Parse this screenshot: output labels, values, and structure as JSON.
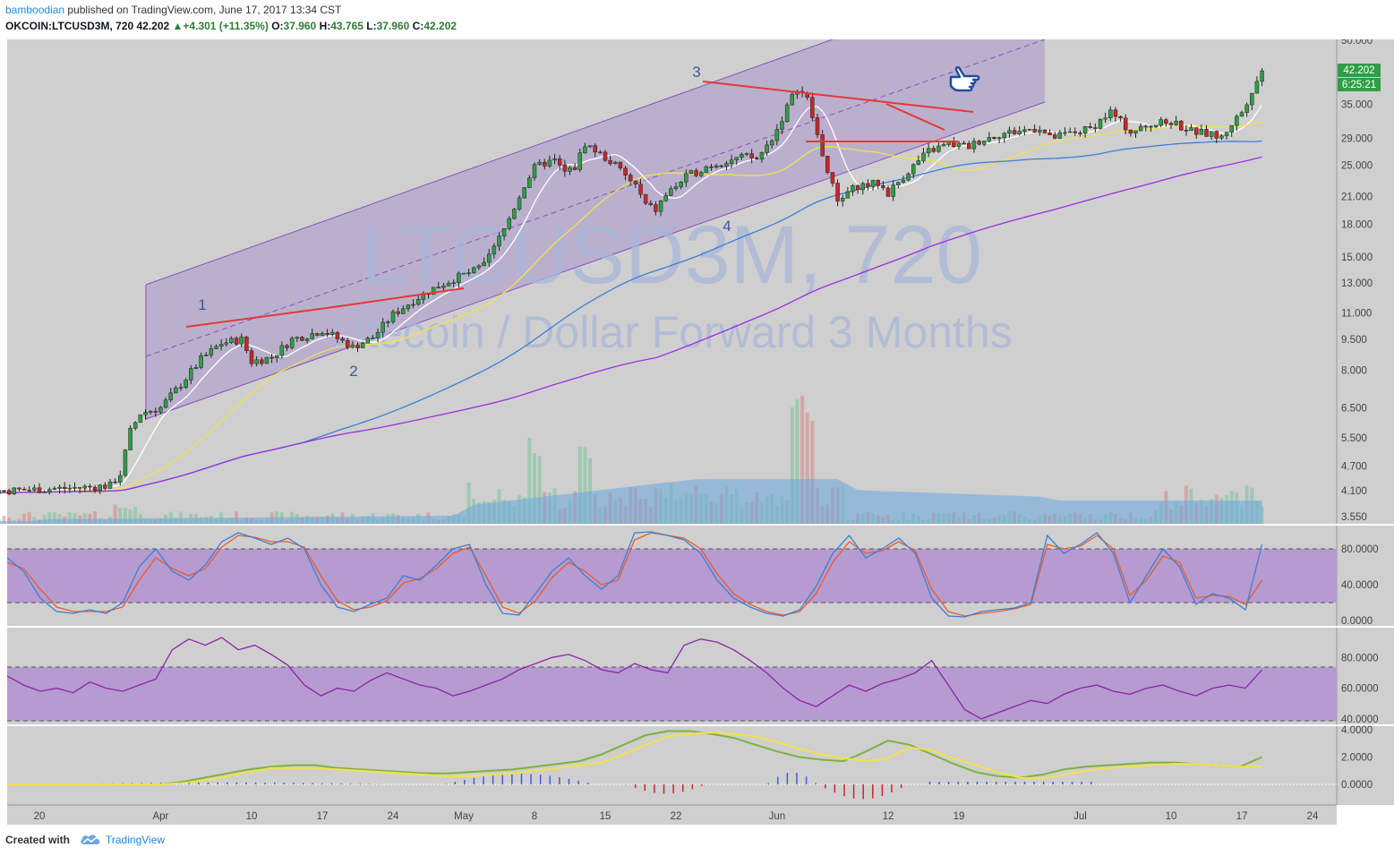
{
  "header": {
    "author": "bamboodian",
    "published_text": "published on TradingView.com, June 17, 2017 13:34 CST",
    "symbol_line": "OKCOIN:LTCUSD3M, 720",
    "last_price": "42.202",
    "change_arrow": "▲",
    "change": "+4.301 (+11.35%)",
    "open_label": "O:",
    "open": "37.960",
    "high_label": "H:",
    "high": "43.765",
    "low_label": "L:",
    "low": "37.960",
    "close_label": "C:",
    "close": "42.202"
  },
  "watermark": {
    "symbol": "LTCUSD3M, 720",
    "description": "Litecoin / Dollar Forward 3 Months"
  },
  "annotations": {
    "wave_1": "1",
    "wave_2": "2",
    "wave_3": "3",
    "wave_4": "4",
    "thumb_icon": "pointing-hand-icon"
  },
  "badges": {
    "price": "42.202",
    "countdown": "6:25:21"
  },
  "footer": {
    "created_with": "Created with",
    "brand": "TradingView"
  },
  "colors": {
    "background": "#cfcfcf",
    "channel_fill": "#b3a6cc",
    "oscillator_band": "#b59bd0",
    "up_candle": "#2f9e44",
    "down_candle": "#c62828",
    "trendline": "#e53935",
    "sma_white": "#ffffff",
    "sma_yellow": "#f2e24a",
    "sma_blue": "#3d7fd9",
    "sma_purple": "#9b30e0",
    "stoch_k": "#3d7fd9",
    "stoch_d": "#ef5a28",
    "rsi": "#8e24aa",
    "osc_fast": "#f2e24a",
    "osc_slow": "#7cb342",
    "accent": "#1e88e5"
  },
  "chart_data": [
    {
      "type": "candlestick",
      "title": "OKCOIN:LTCUSD3M, 720",
      "price_scale": "log",
      "y_ticks": [
        "50.000",
        "35.000",
        "29.000",
        "25.000",
        "21.000",
        "18.000",
        "15.000",
        "13.000",
        "11.000",
        "9.500",
        "8.000",
        "6.500",
        "5.500",
        "4.700",
        "4.100",
        "3.550"
      ],
      "y_tick_values": [
        50,
        35,
        29,
        25,
        21,
        18,
        15,
        13,
        11,
        9.5,
        8,
        6.5,
        5.5,
        4.7,
        4.1,
        3.55
      ],
      "x_ticks": [
        "20",
        "Apr",
        "10",
        "17",
        "24",
        "May",
        "8",
        "15",
        "22",
        "Jun",
        "12",
        "19",
        "Jul",
        "10",
        "17",
        "24"
      ],
      "x_tick_days": [
        20,
        32,
        41,
        48,
        55,
        62,
        69,
        76,
        83,
        93,
        104,
        111,
        123,
        132,
        139,
        146
      ],
      "x_unit": "day of year 2017 (Mar 1 = 1)",
      "series_close": [
        [
          1,
          4.12
        ],
        [
          4,
          4.08
        ],
        [
          7,
          4.05
        ],
        [
          10,
          4.06
        ],
        [
          13,
          4.08
        ],
        [
          16,
          4.1
        ],
        [
          19,
          4.12
        ],
        [
          22,
          4.15
        ],
        [
          25,
          4.18
        ],
        [
          27,
          4.22
        ],
        [
          28,
          4.5
        ],
        [
          29,
          5.7
        ],
        [
          30,
          6.3
        ],
        [
          32,
          6.5
        ],
        [
          34,
          7.4
        ],
        [
          36,
          8.5
        ],
        [
          38,
          9.3
        ],
        [
          40,
          9.5
        ],
        [
          41,
          8.4
        ],
        [
          43,
          8.6
        ],
        [
          45,
          9.5
        ],
        [
          47,
          9.8
        ],
        [
          48,
          10.0
        ],
        [
          50,
          9.4
        ],
        [
          51,
          9.1
        ],
        [
          53,
          9.6
        ],
        [
          55,
          10.9
        ],
        [
          57,
          11.8
        ],
        [
          59,
          12.6
        ],
        [
          61,
          13.3
        ],
        [
          63,
          13.9
        ],
        [
          64,
          14.3
        ],
        [
          65,
          15.8
        ],
        [
          66,
          17.5
        ],
        [
          67,
          19.8
        ],
        [
          68,
          22.4
        ],
        [
          69,
          24.6
        ],
        [
          70,
          25.3
        ],
        [
          71,
          25.6
        ],
        [
          72,
          24.0
        ],
        [
          73,
          24.7
        ],
        [
          74,
          28.2
        ],
        [
          75,
          27.1
        ],
        [
          77,
          25.0
        ],
        [
          78,
          23.5
        ],
        [
          79,
          22.3
        ],
        [
          80,
          20.0
        ],
        [
          81,
          19.5
        ],
        [
          82,
          21.2
        ],
        [
          84,
          23.4
        ],
        [
          86,
          24.8
        ],
        [
          88,
          25.6
        ],
        [
          90,
          26.2
        ],
        [
          91,
          25.8
        ],
        [
          92,
          27.8
        ],
        [
          93,
          30.5
        ],
        [
          94,
          34.5
        ],
        [
          95,
          38.5
        ],
        [
          96,
          36.0
        ],
        [
          97,
          29.5
        ],
        [
          98,
          24.0
        ],
        [
          99,
          20.6
        ],
        [
          100,
          21.5
        ],
        [
          101,
          22.3
        ],
        [
          103,
          22.6
        ],
        [
          104,
          21.4
        ],
        [
          106,
          24.2
        ],
        [
          108,
          27.0
        ],
        [
          110,
          28.1
        ],
        [
          112,
          27.7
        ],
        [
          113,
          28.6
        ],
        [
          115,
          29.7
        ],
        [
          117,
          30.2
        ],
        [
          119,
          30.8
        ],
        [
          120,
          29.0
        ],
        [
          122,
          29.8
        ],
        [
          124,
          30.6
        ],
        [
          126,
          33.6
        ],
        [
          127,
          31.8
        ],
        [
          128,
          30.1
        ],
        [
          130,
          31.2
        ],
        [
          132,
          31.8
        ],
        [
          134,
          30.2
        ],
        [
          136,
          29.6
        ],
        [
          137,
          29.1
        ],
        [
          138,
          31.5
        ],
        [
          139,
          33.6
        ],
        [
          140,
          37.96
        ],
        [
          141,
          42.202
        ]
      ],
      "volume_note": "volume histogram overlay with moving average (values not labeled)",
      "overlays": [
        "SMA white (fast)",
        "SMA yellow",
        "SMA blue",
        "SMA purple",
        "Regression channel",
        "Trendlines"
      ]
    },
    {
      "type": "line",
      "title": "Stochastic",
      "y_ticks": [
        "80.0000",
        "40.0000",
        "0.0000"
      ],
      "y_tick_values": [
        80,
        40,
        0
      ],
      "ylim": [
        0,
        100
      ],
      "bands": [
        20,
        80
      ],
      "series": [
        {
          "values": [
            70,
            55,
            25,
            10,
            8,
            12,
            8,
            20,
            60,
            80,
            55,
            45,
            62,
            88,
            98,
            92,
            85,
            92,
            80,
            40,
            15,
            10,
            18,
            25,
            50,
            45,
            62,
            80,
            85,
            40,
            8,
            6,
            30,
            55,
            70,
            50,
            35,
            50,
            98,
            99,
            95,
            90,
            75,
            45,
            25,
            15,
            8,
            5,
            12,
            38,
            75,
            95,
            70,
            80,
            92,
            75,
            25,
            5,
            4,
            10,
            12,
            14,
            20,
            95,
            75,
            85,
            98,
            75,
            20,
            50,
            80,
            60,
            18,
            30,
            25,
            12,
            85
          ]
        },
        {
          "values": [
            65,
            58,
            35,
            15,
            10,
            10,
            10,
            15,
            45,
            70,
            58,
            50,
            58,
            82,
            95,
            93,
            88,
            88,
            82,
            50,
            22,
            12,
            15,
            22,
            42,
            47,
            58,
            75,
            82,
            50,
            15,
            8,
            22,
            48,
            65,
            55,
            40,
            45,
            90,
            98,
            95,
            92,
            80,
            52,
            30,
            18,
            10,
            6,
            10,
            30,
            65,
            88,
            75,
            78,
            88,
            78,
            35,
            10,
            5,
            8,
            10,
            13,
            18,
            85,
            80,
            83,
            95,
            80,
            28,
            45,
            72,
            65,
            25,
            28,
            27,
            18,
            45
          ]
        }
      ]
    },
    {
      "type": "line",
      "title": "RSI",
      "y_ticks": [
        "80.0000",
        "60.0000",
        "40.0000"
      ],
      "y_tick_values": [
        80,
        60,
        40
      ],
      "ylim": [
        34,
        100
      ],
      "bands": [
        47,
        70
      ],
      "series": [
        {
          "values": [
            68,
            62,
            58,
            60,
            57,
            64,
            60,
            58,
            62,
            66,
            85,
            92,
            88,
            93,
            85,
            88,
            82,
            75,
            62,
            55,
            60,
            58,
            65,
            70,
            66,
            62,
            60,
            55,
            58,
            62,
            66,
            72,
            76,
            80,
            82,
            78,
            72,
            70,
            76,
            72,
            70,
            88,
            92,
            90,
            85,
            78,
            70,
            60,
            52,
            48,
            55,
            62,
            58,
            63,
            66,
            70,
            78,
            62,
            46,
            40,
            44,
            48,
            52,
            50,
            56,
            60,
            62,
            58,
            56,
            60,
            62,
            58,
            55,
            60,
            62,
            60,
            72
          ]
        }
      ]
    },
    {
      "type": "line",
      "title": "Oscillator with histogram",
      "y_ticks": [
        "4.0000",
        "2.0000",
        "0.0000"
      ],
      "y_tick_values": [
        4,
        2,
        0
      ],
      "ylim": [
        -1.2,
        4.2
      ],
      "series": [
        {
          "values": [
            0.0,
            0.0,
            0.0,
            0.0,
            0.0,
            0.0,
            0.0,
            0.0,
            0.1,
            0.3,
            0.6,
            0.9,
            1.2,
            1.2,
            1.2,
            1.1,
            1.0,
            0.9,
            0.8,
            0.7,
            0.6,
            0.6,
            0.7,
            0.8,
            1.0,
            1.2,
            1.4,
            1.6,
            2.2,
            2.9,
            3.5,
            3.7,
            3.8,
            3.7,
            3.5,
            3.1,
            2.6,
            2.2,
            1.9,
            1.7,
            1.9,
            2.7,
            2.5,
            1.9,
            1.4,
            0.9,
            0.5,
            0.4,
            0.7,
            1.0,
            1.2,
            1.3,
            1.4,
            1.5,
            1.5,
            1.4,
            1.3,
            1.3
          ]
        },
        {
          "values": [
            0.0,
            0.0,
            0.0,
            0.0,
            0.0,
            0.0,
            0.0,
            0.0,
            0.2,
            0.5,
            0.8,
            1.1,
            1.3,
            1.4,
            1.4,
            1.2,
            1.1,
            1.0,
            0.9,
            0.8,
            0.8,
            0.9,
            1.0,
            1.1,
            1.3,
            1.5,
            1.7,
            2.2,
            2.9,
            3.6,
            3.9,
            3.9,
            3.7,
            3.4,
            2.9,
            2.4,
            2.0,
            1.8,
            1.7,
            2.4,
            3.2,
            2.9,
            2.2,
            1.5,
            0.9,
            0.6,
            0.5,
            0.7,
            1.1,
            1.3,
            1.4,
            1.5,
            1.6,
            1.6,
            1.5,
            1.4,
            1.3,
            2.0
          ]
        }
      ]
    }
  ]
}
